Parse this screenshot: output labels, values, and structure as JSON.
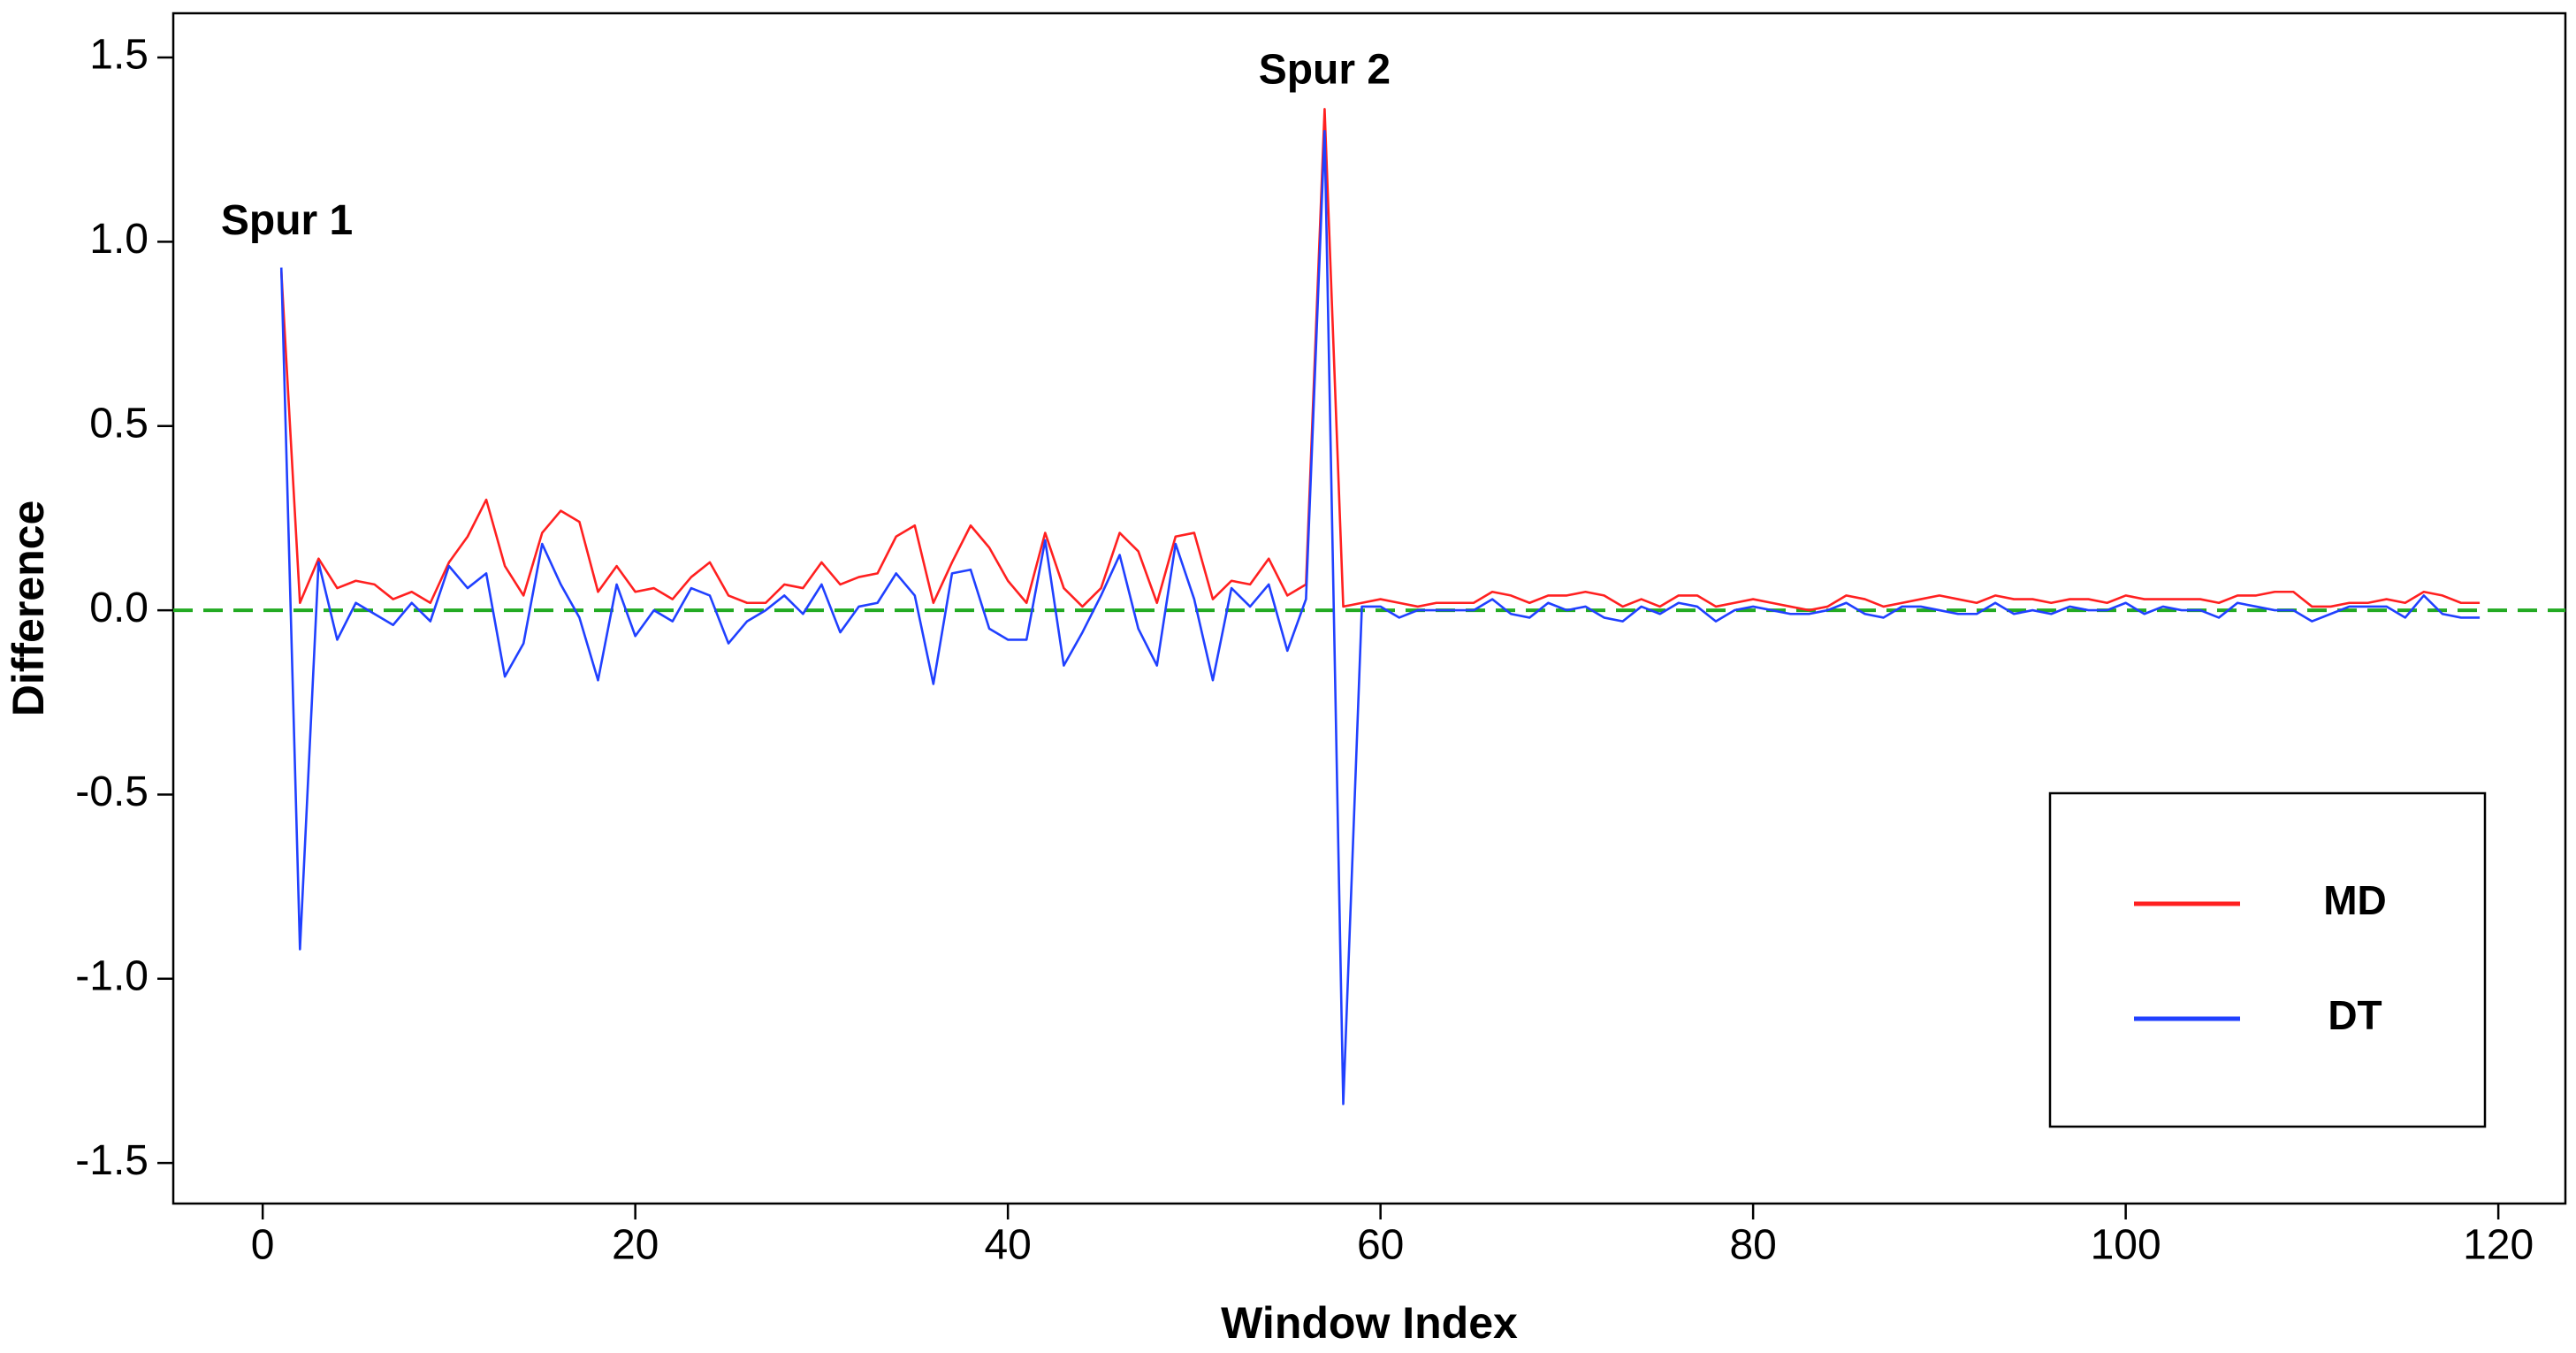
{
  "chart_data": {
    "type": "line",
    "xlabel": "Window Index",
    "ylabel": "Difference",
    "x": [
      1,
      2,
      3,
      4,
      5,
      6,
      7,
      8,
      9,
      10,
      11,
      12,
      13,
      14,
      15,
      16,
      17,
      18,
      19,
      20,
      21,
      22,
      23,
      24,
      25,
      26,
      27,
      28,
      29,
      30,
      31,
      32,
      33,
      34,
      35,
      36,
      37,
      38,
      39,
      40,
      41,
      42,
      43,
      44,
      45,
      46,
      47,
      48,
      49,
      50,
      51,
      52,
      53,
      54,
      55,
      56,
      57,
      58,
      59,
      60,
      61,
      62,
      63,
      64,
      65,
      66,
      67,
      68,
      69,
      70,
      71,
      72,
      73,
      74,
      75,
      76,
      77,
      78,
      79,
      80,
      81,
      82,
      83,
      84,
      85,
      86,
      87,
      88,
      89,
      90,
      91,
      92,
      93,
      94,
      95,
      96,
      97,
      98,
      99,
      100,
      101,
      102,
      103,
      104,
      105,
      106,
      107,
      108,
      109,
      110,
      111,
      112,
      113,
      114,
      115,
      116,
      117,
      118,
      119
    ],
    "series": [
      {
        "name": "MD",
        "color": "#ff2020",
        "values": [
          0.92,
          0.02,
          0.14,
          0.06,
          0.08,
          0.07,
          0.03,
          0.05,
          0.02,
          0.13,
          0.2,
          0.3,
          0.12,
          0.04,
          0.21,
          0.27,
          0.24,
          0.05,
          0.12,
          0.05,
          0.06,
          0.03,
          0.09,
          0.13,
          0.04,
          0.02,
          0.02,
          0.07,
          0.06,
          0.13,
          0.07,
          0.09,
          0.1,
          0.2,
          0.23,
          0.02,
          0.13,
          0.23,
          0.17,
          0.08,
          0.02,
          0.21,
          0.06,
          0.01,
          0.06,
          0.21,
          0.16,
          0.02,
          0.2,
          0.21,
          0.03,
          0.08,
          0.07,
          0.14,
          0.04,
          0.07,
          1.36,
          0.01,
          0.02,
          0.03,
          0.02,
          0.01,
          0.02,
          0.02,
          0.02,
          0.05,
          0.04,
          0.02,
          0.04,
          0.04,
          0.05,
          0.04,
          0.01,
          0.03,
          0.01,
          0.04,
          0.04,
          0.01,
          0.02,
          0.03,
          0.02,
          0.01,
          0.0,
          0.01,
          0.04,
          0.03,
          0.01,
          0.02,
          0.03,
          0.04,
          0.03,
          0.02,
          0.04,
          0.03,
          0.03,
          0.02,
          0.03,
          0.03,
          0.02,
          0.04,
          0.03,
          0.03,
          0.03,
          0.03,
          0.02,
          0.04,
          0.04,
          0.05,
          0.05,
          0.01,
          0.01,
          0.02,
          0.02,
          0.03,
          0.02,
          0.05,
          0.04,
          0.02,
          0.02
        ]
      },
      {
        "name": "DT",
        "color": "#2040ff",
        "values": [
          0.93,
          -0.92,
          0.13,
          -0.08,
          0.02,
          -0.01,
          -0.04,
          0.02,
          -0.03,
          0.12,
          0.06,
          0.1,
          -0.18,
          -0.09,
          0.18,
          0.07,
          -0.02,
          -0.19,
          0.07,
          -0.07,
          0.0,
          -0.03,
          0.06,
          0.04,
          -0.09,
          -0.03,
          0.0,
          0.04,
          -0.01,
          0.07,
          -0.06,
          0.01,
          0.02,
          0.1,
          0.04,
          -0.2,
          0.1,
          0.11,
          -0.05,
          -0.08,
          -0.08,
          0.19,
          -0.15,
          -0.06,
          0.04,
          0.15,
          -0.05,
          -0.15,
          0.18,
          0.03,
          -0.19,
          0.06,
          0.01,
          0.07,
          -0.11,
          0.03,
          1.3,
          -1.34,
          0.01,
          0.01,
          -0.02,
          0.0,
          0.0,
          0.0,
          0.0,
          0.03,
          -0.01,
          -0.02,
          0.02,
          0.0,
          0.01,
          -0.02,
          -0.03,
          0.01,
          -0.01,
          0.02,
          0.01,
          -0.03,
          0.0,
          0.01,
          0.0,
          -0.01,
          -0.01,
          0.0,
          0.02,
          -0.01,
          -0.02,
          0.01,
          0.01,
          0.0,
          -0.01,
          -0.01,
          0.02,
          -0.01,
          0.0,
          -0.01,
          0.01,
          0.0,
          0.0,
          0.02,
          -0.01,
          0.01,
          0.0,
          0.0,
          -0.02,
          0.02,
          0.01,
          0.0,
          0.0,
          -0.03,
          -0.01,
          0.01,
          0.01,
          0.01,
          -0.02,
          0.04,
          -0.01,
          -0.02,
          -0.02
        ]
      }
    ],
    "xlim": [
      -4.8,
      123.6
    ],
    "xticks": [
      0,
      20,
      40,
      60,
      80,
      100,
      120
    ],
    "ylim": [
      -1.61,
      1.62
    ],
    "yticks": [
      -1.5,
      {
        "value": -1,
        "label": "-1.0"
      },
      -0.5,
      {
        "value": 0,
        "label": "0.0"
      },
      0.5,
      {
        "value": 1,
        "label": "1.0"
      },
      1.5
    ],
    "reference_line": {
      "y": 0,
      "color": "#22aa22",
      "dashed": true
    },
    "annotations": [
      {
        "text": "Spur 1",
        "x": 1.3,
        "y": 1.05
      },
      {
        "text": "Spur 2",
        "x": 57,
        "y": 1.46
      }
    ],
    "legend": "lower right",
    "grid": false
  }
}
